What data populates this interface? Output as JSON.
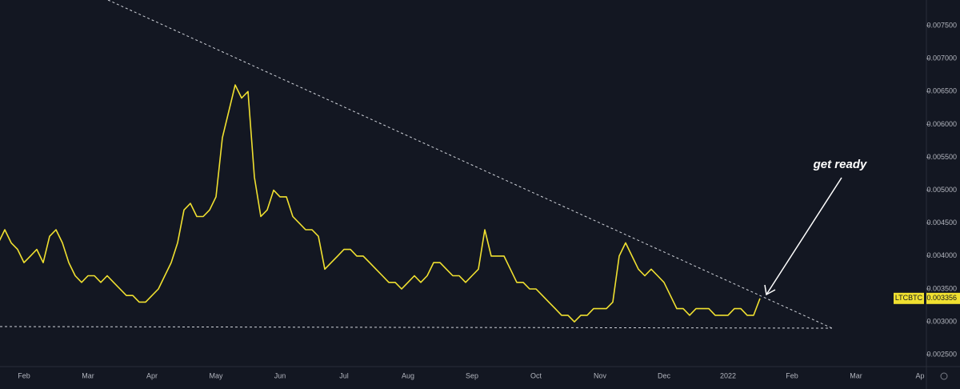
{
  "chart_data": {
    "type": "line",
    "symbol": "LTCBTC",
    "annotation": "get ready",
    "color": "#f0e030",
    "grid": false,
    "last_price": 0.003356,
    "categories": [
      null,
      null,
      null,
      null,
      "Feb",
      null,
      null,
      null,
      null,
      null,
      null,
      null,
      null,
      null,
      "Mar",
      null,
      null,
      null,
      null,
      null,
      null,
      null,
      null,
      null,
      "Apr",
      null,
      null,
      null,
      null,
      null,
      null,
      null,
      null,
      null,
      "May",
      null,
      null,
      null,
      null,
      null,
      null,
      null,
      null,
      null,
      "Jun",
      null,
      null,
      null,
      null,
      null,
      null,
      null,
      null,
      null,
      "Jul",
      null,
      null,
      null,
      null,
      null,
      null,
      null,
      null,
      null,
      "Aug",
      null,
      null,
      null,
      null,
      null,
      null,
      null,
      null,
      null,
      "Sep",
      null,
      null,
      null,
      null,
      null,
      null,
      null,
      null,
      null,
      "Oct",
      null,
      null,
      null,
      null,
      null,
      null,
      null,
      null,
      null,
      "Nov",
      null,
      null,
      null,
      null,
      null,
      null,
      null,
      null,
      null,
      "Dec",
      null,
      null,
      null,
      null,
      null,
      null,
      null,
      null,
      null,
      "2022",
      null,
      null,
      null,
      null,
      null,
      null,
      null,
      null,
      null,
      "Feb",
      null,
      null,
      null,
      null,
      null,
      null,
      null,
      null,
      null,
      "Mar",
      null,
      null,
      null,
      null,
      null,
      null,
      null,
      null,
      null,
      "Ap",
      null
    ],
    "values": [
      0.0042,
      0.0044,
      0.0042,
      0.0041,
      0.0039,
      0.004,
      0.0041,
      0.0039,
      0.0043,
      0.0044,
      0.0042,
      0.0039,
      0.0037,
      0.0036,
      0.0037,
      0.0037,
      0.0036,
      0.0037,
      0.0036,
      0.0035,
      0.0034,
      0.0034,
      0.0033,
      0.0033,
      0.0034,
      0.0035,
      0.0037,
      0.0039,
      0.0042,
      0.0047,
      0.0048,
      0.0046,
      0.0046,
      0.0047,
      0.0049,
      0.0058,
      0.0062,
      0.0066,
      0.0064,
      0.0065,
      0.0052,
      0.0046,
      0.0047,
      0.005,
      0.0049,
      0.0049,
      0.0046,
      0.0045,
      0.0044,
      0.0044,
      0.0043,
      0.0038,
      0.0039,
      0.004,
      0.0041,
      0.0041,
      0.004,
      0.004,
      0.0039,
      0.0038,
      0.0037,
      0.0036,
      0.0036,
      0.0035,
      0.0036,
      0.0037,
      0.0036,
      0.0037,
      0.0039,
      0.0039,
      0.0038,
      0.0037,
      0.0037,
      0.0036,
      0.0037,
      0.0038,
      0.0044,
      0.004,
      0.004,
      0.004,
      0.0038,
      0.0036,
      0.0036,
      0.0035,
      0.0035,
      0.0034,
      0.0033,
      0.0032,
      0.0031,
      0.0031,
      0.003,
      0.0031,
      0.0031,
      0.0032,
      0.0032,
      0.0032,
      0.0033,
      0.004,
      0.0042,
      0.004,
      0.0038,
      0.0037,
      0.0038,
      0.0037,
      0.0036,
      0.0034,
      0.0032,
      0.0032,
      0.0031,
      0.0032,
      0.0032,
      0.0032,
      0.0031,
      0.0031,
      0.0031,
      0.0032,
      0.0032,
      0.0031,
      0.0031,
      0.003356,
      null,
      null,
      null,
      null,
      null,
      null,
      null,
      null,
      null,
      null,
      null,
      null,
      null,
      null,
      null,
      null,
      null,
      null,
      null,
      null,
      null,
      null,
      null,
      null,
      null,
      null
    ],
    "ylim": [
      0.00232,
      0.00789
    ],
    "yticks": [
      {
        "value": 0.0025,
        "label": "0.002500"
      },
      {
        "value": 0.003,
        "label": "0.003000"
      },
      {
        "value": 0.0035,
        "label": "0.003500"
      },
      {
        "value": 0.004,
        "label": "0.004000"
      },
      {
        "value": 0.0045,
        "label": "0.004500"
      },
      {
        "value": 0.005,
        "label": "0.005000"
      },
      {
        "value": 0.0055,
        "label": "0.005500"
      },
      {
        "value": 0.006,
        "label": "0.006000"
      },
      {
        "value": 0.0065,
        "label": "0.006500"
      },
      {
        "value": 0.007,
        "label": "0.007000"
      },
      {
        "value": 0.0075,
        "label": "0.007500"
      }
    ]
  }
}
